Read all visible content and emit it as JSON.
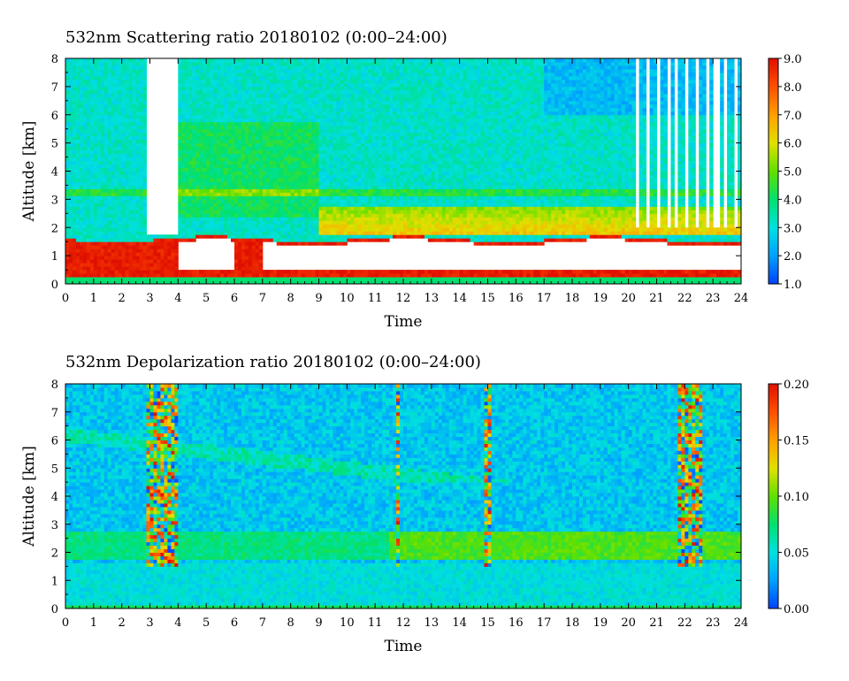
{
  "chart_data": [
    {
      "type": "heatmap",
      "title": "532nm Scattering ratio  20180102 (0:00–24:00)",
      "xlabel": "Time",
      "ylabel": "Altitude [km]",
      "xlim": [
        0,
        24
      ],
      "ylim": [
        0,
        8
      ],
      "x_ticks": [
        "0",
        "1",
        "2",
        "3",
        "4",
        "5",
        "6",
        "7",
        "8",
        "9",
        "10",
        "11",
        "12",
        "13",
        "14",
        "15",
        "16",
        "17",
        "18",
        "19",
        "20",
        "21",
        "22",
        "23",
        "24"
      ],
      "y_ticks": [
        "0",
        "1",
        "2",
        "3",
        "4",
        "5",
        "6",
        "7",
        "8"
      ],
      "colorbar": {
        "min": 1.0,
        "max": 9.0,
        "ticks": [
          "1.0",
          "2.0",
          "3.0",
          "4.0",
          "5.0",
          "6.0",
          "7.0",
          "8.0",
          "9.0"
        ],
        "colors": [
          "#0040ff",
          "#00a0ff",
          "#00e0e0",
          "#00e070",
          "#60e000",
          "#e0e000",
          "#ffa000",
          "#ff5000",
          "#e01000"
        ]
      },
      "features": {
        "background_value": 3.2,
        "surface_layer": {
          "top_km": 1.6,
          "value": 8.5
        },
        "missing_intervals_h": [
          [
            2.85,
            3.95
          ]
        ],
        "upper_layer": {
          "bottom_km": 1.8,
          "top_km": 2.8,
          "value": 6.0
        },
        "elevated_layer_km": 3.2,
        "upper_cloud_h": [
          20.3,
          23.9
        ]
      }
    },
    {
      "type": "heatmap",
      "title": "532nm Depolarization ratio  20180102 (0:00–24:00)",
      "xlabel": "Time",
      "ylabel": "Altitude [km]",
      "xlim": [
        0,
        24
      ],
      "ylim": [
        0,
        8
      ],
      "x_ticks": [
        "0",
        "1",
        "2",
        "3",
        "4",
        "5",
        "6",
        "7",
        "8",
        "9",
        "10",
        "11",
        "12",
        "13",
        "14",
        "15",
        "16",
        "17",
        "18",
        "19",
        "20",
        "21",
        "22",
        "23",
        "24"
      ],
      "y_ticks": [
        "0",
        "1",
        "2",
        "3",
        "4",
        "5",
        "6",
        "7",
        "8"
      ],
      "colorbar": {
        "min": 0.0,
        "max": 0.2,
        "ticks": [
          "0.00",
          "0.05",
          "0.10",
          "0.15",
          "0.20"
        ],
        "colors": [
          "#0040ff",
          "#00a0ff",
          "#00e0e0",
          "#00e070",
          "#60e000",
          "#e0e000",
          "#ffa000",
          "#ff5000",
          "#e01000"
        ]
      },
      "features": {
        "background_value": 0.04,
        "low_layer": {
          "bottom_km": 0,
          "top_km": 1.6,
          "value": 0.05
        },
        "dust_layer": {
          "bottom_km": 1.8,
          "top_km": 2.8,
          "value": 0.095
        },
        "noisy_intervals_h": [
          [
            2.85,
            3.95
          ],
          [
            11.7,
            11.9
          ],
          [
            14.9,
            15.1
          ],
          [
            21.7,
            22.6
          ]
        ]
      }
    }
  ]
}
